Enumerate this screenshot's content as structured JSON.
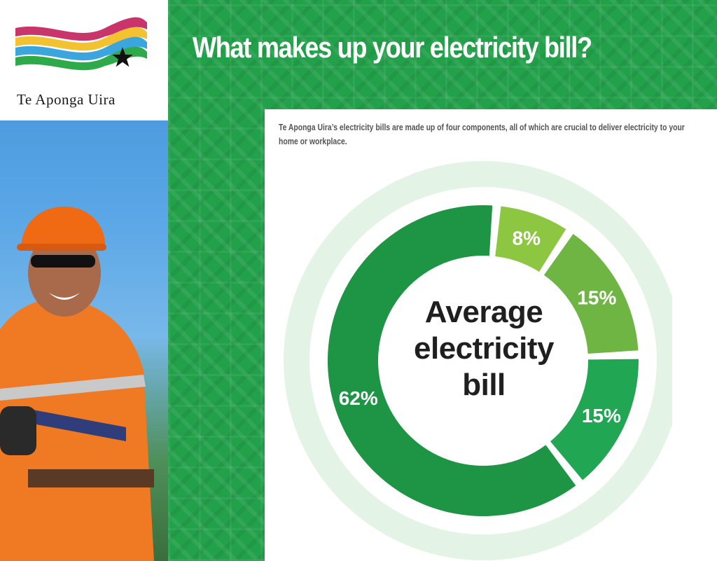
{
  "brand": {
    "logo_text": "Te Aponga Uira",
    "flag_colors": [
      "#c9356a",
      "#f2c230",
      "#3aa6dd",
      "#2faa4a"
    ]
  },
  "title": "What makes up your electricity bill?",
  "intro": "Te Aponga Uira’s electricity bills are made up of four components, all of which are crucial to deliver electricity to your home or workplace.",
  "chart_data": {
    "type": "pie",
    "center_label": "Average electricity bill",
    "slices": [
      {
        "label": "62%",
        "value": 62,
        "color": "#1e9445"
      },
      {
        "label": "8%",
        "value": 8,
        "color": "#8dc641"
      },
      {
        "label": "15%",
        "value": 15,
        "color": "#6fb544"
      },
      {
        "label": "15%",
        "value": 15,
        "color": "#21a653"
      }
    ]
  },
  "icons": [
    "star-icon",
    "flag-logo-icon"
  ]
}
